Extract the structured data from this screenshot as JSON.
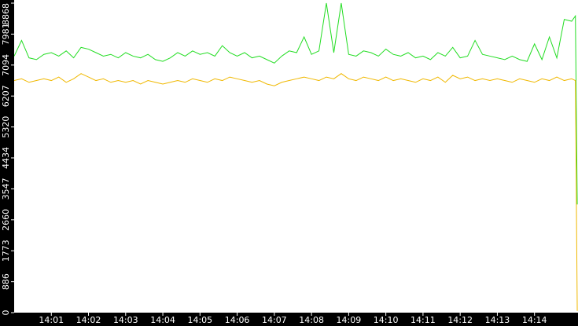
{
  "chart_data": {
    "type": "line",
    "x": [
      840.0,
      840.2,
      840.4,
      840.6,
      840.8,
      841.0,
      841.2,
      841.4,
      841.6,
      841.8,
      842.0,
      842.2,
      842.4,
      842.6,
      842.8,
      843.0,
      843.2,
      843.4,
      843.6,
      843.8,
      844.0,
      844.2,
      844.4,
      844.6,
      844.8,
      845.0,
      845.2,
      845.4,
      845.6,
      845.8,
      846.0,
      846.2,
      846.4,
      846.6,
      846.8,
      847.0,
      847.2,
      847.4,
      847.6,
      847.8,
      848.0,
      848.2,
      848.4,
      848.6,
      848.8,
      849.0,
      849.2,
      849.4,
      849.6,
      849.8,
      850.0,
      850.2,
      850.4,
      850.6,
      850.8,
      851.0,
      851.2,
      851.4,
      851.6,
      851.8,
      852.0,
      852.2,
      852.4,
      852.6,
      852.8,
      853.0,
      853.2,
      853.4,
      853.6,
      853.8,
      854.0,
      854.2,
      854.4,
      854.6,
      854.8,
      855.0,
      855.1,
      855.15
    ],
    "series": [
      {
        "color": "#22dd22",
        "values": [
          7350,
          7800,
          7300,
          7250,
          7400,
          7450,
          7350,
          7500,
          7300,
          7600,
          7550,
          7450,
          7350,
          7400,
          7300,
          7450,
          7350,
          7300,
          7400,
          7250,
          7200,
          7300,
          7450,
          7350,
          7500,
          7400,
          7450,
          7350,
          7650,
          7450,
          7350,
          7450,
          7300,
          7350,
          7250,
          7150,
          7350,
          7500,
          7450,
          7900,
          7400,
          7500,
          8868,
          7450,
          8868,
          7400,
          7350,
          7500,
          7450,
          7350,
          7550,
          7400,
          7350,
          7450,
          7300,
          7350,
          7250,
          7450,
          7350,
          7600,
          7300,
          7350,
          7800,
          7400,
          7350,
          7300,
          7250,
          7350,
          7250,
          7200,
          7700,
          7250,
          7900,
          7300,
          8400,
          8350,
          8500,
          3100
        ]
      },
      {
        "color": "#f0b800",
        "values": [
          6650,
          6700,
          6600,
          6650,
          6700,
          6650,
          6750,
          6600,
          6700,
          6850,
          6750,
          6650,
          6700,
          6600,
          6650,
          6600,
          6650,
          6550,
          6650,
          6600,
          6550,
          6600,
          6650,
          6600,
          6700,
          6650,
          6600,
          6700,
          6650,
          6750,
          6700,
          6650,
          6600,
          6650,
          6550,
          6500,
          6600,
          6650,
          6700,
          6750,
          6700,
          6650,
          6750,
          6700,
          6850,
          6700,
          6650,
          6750,
          6700,
          6650,
          6750,
          6650,
          6700,
          6650,
          6600,
          6700,
          6650,
          6750,
          6600,
          6800,
          6700,
          6750,
          6650,
          6700,
          6650,
          6700,
          6650,
          6600,
          6700,
          6650,
          6600,
          6700,
          6650,
          6750,
          6650,
          6700,
          6650,
          50
        ]
      }
    ],
    "xlim": [
      840,
      855.17
    ],
    "xticks": [
      {
        "value": 841,
        "label": "14:01"
      },
      {
        "value": 842,
        "label": "14:02"
      },
      {
        "value": 843,
        "label": "14:03"
      },
      {
        "value": 844,
        "label": "14:04"
      },
      {
        "value": 845,
        "label": "14:05"
      },
      {
        "value": 846,
        "label": "14:06"
      },
      {
        "value": 847,
        "label": "14:07"
      },
      {
        "value": 848,
        "label": "14:08"
      },
      {
        "value": 849,
        "label": "14:09"
      },
      {
        "value": 850,
        "label": "14:10"
      },
      {
        "value": 851,
        "label": "14:11"
      },
      {
        "value": 852,
        "label": "14:12"
      },
      {
        "value": 853,
        "label": "14:13"
      },
      {
        "value": 854,
        "label": "14:14"
      }
    ],
    "ylim": [
      0,
      8868
    ],
    "yticks": [
      0,
      886,
      1773,
      2660,
      3547,
      4434,
      5320,
      6207,
      7094,
      7981,
      8868
    ]
  }
}
